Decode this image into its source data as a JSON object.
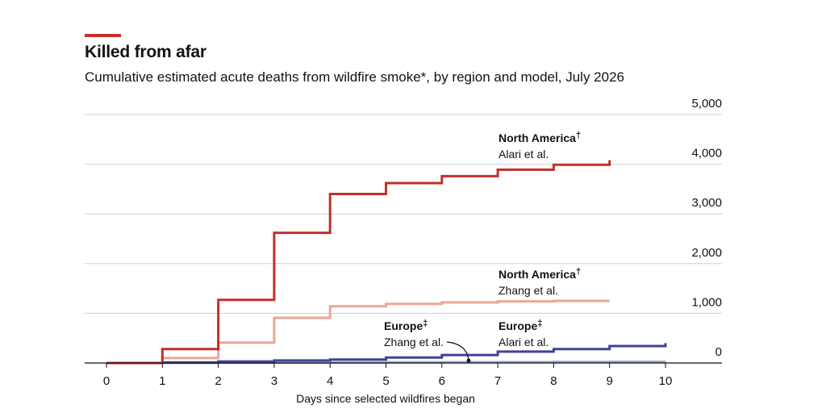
{
  "header": {
    "title": "Killed from afar",
    "subtitle": "Cumulative estimated acute deaths from wildfire smoke*, by region and model, July 2026",
    "accent_color": "#c4302b"
  },
  "chart_data": {
    "type": "line",
    "step": true,
    "title": "Killed from afar",
    "subtitle": "Cumulative estimated acute deaths from wildfire smoke*, by region and model, July 2026",
    "xlabel": "Days since selected wildfires began",
    "ylabel": "",
    "xlim": [
      0,
      10
    ],
    "ylim": [
      0,
      5000
    ],
    "x_ticks": [
      "0",
      "1",
      "2",
      "3",
      "4",
      "5",
      "6",
      "7",
      "8",
      "9",
      "10"
    ],
    "y_ticks": [
      {
        "value": 0,
        "label": "0"
      },
      {
        "value": 1000,
        "label": "1,000"
      },
      {
        "value": 2000,
        "label": "2,000"
      },
      {
        "value": 3000,
        "label": "3,000"
      },
      {
        "value": 4000,
        "label": "4,000"
      },
      {
        "value": 5000,
        "label": "5,000"
      }
    ],
    "y_axis_position": "right",
    "grid": true,
    "series": [
      {
        "region": "North America",
        "region_mark": "†",
        "model": "Alari et al.",
        "color": "#c4302b",
        "x": [
          0,
          1,
          2,
          3,
          4,
          5,
          6,
          7,
          8,
          9
        ],
        "y": [
          0,
          280,
          1270,
          2620,
          3400,
          3620,
          3760,
          3890,
          3990,
          4080
        ]
      },
      {
        "region": "North America",
        "region_mark": "†",
        "model": "Zhang et al.",
        "color": "#eba693",
        "x": [
          0,
          1,
          2,
          3,
          4,
          5,
          6,
          7,
          8,
          9
        ],
        "y": [
          0,
          100,
          410,
          910,
          1140,
          1190,
          1220,
          1240,
          1250,
          1250
        ]
      },
      {
        "region": "Europe",
        "region_mark": "‡",
        "model": "Alari et al.",
        "color": "#3d4499",
        "x": [
          0,
          1,
          2,
          3,
          4,
          5,
          6,
          7,
          8,
          9,
          10
        ],
        "y": [
          0,
          10,
          30,
          50,
          70,
          110,
          160,
          230,
          280,
          340,
          400
        ]
      },
      {
        "region": "Europe",
        "region_mark": "‡",
        "model": "Zhang et al.",
        "color": "#8fa4cc",
        "x": [
          0,
          1,
          2,
          3,
          4,
          5,
          6,
          7,
          8,
          9,
          10
        ],
        "y": [
          0,
          2,
          5,
          7,
          10,
          12,
          15,
          17,
          20,
          22,
          25
        ]
      }
    ],
    "annotations": [
      {
        "series": 0,
        "region": "North America",
        "mark": "†",
        "model": "Alari et al."
      },
      {
        "series": 1,
        "region": "North America",
        "mark": "†",
        "model": "Zhang et al."
      },
      {
        "series": 3,
        "region": "Europe",
        "mark": "‡",
        "model": "Zhang et al."
      },
      {
        "series": 2,
        "region": "Europe",
        "mark": "‡",
        "model": "Alari et al."
      }
    ]
  }
}
